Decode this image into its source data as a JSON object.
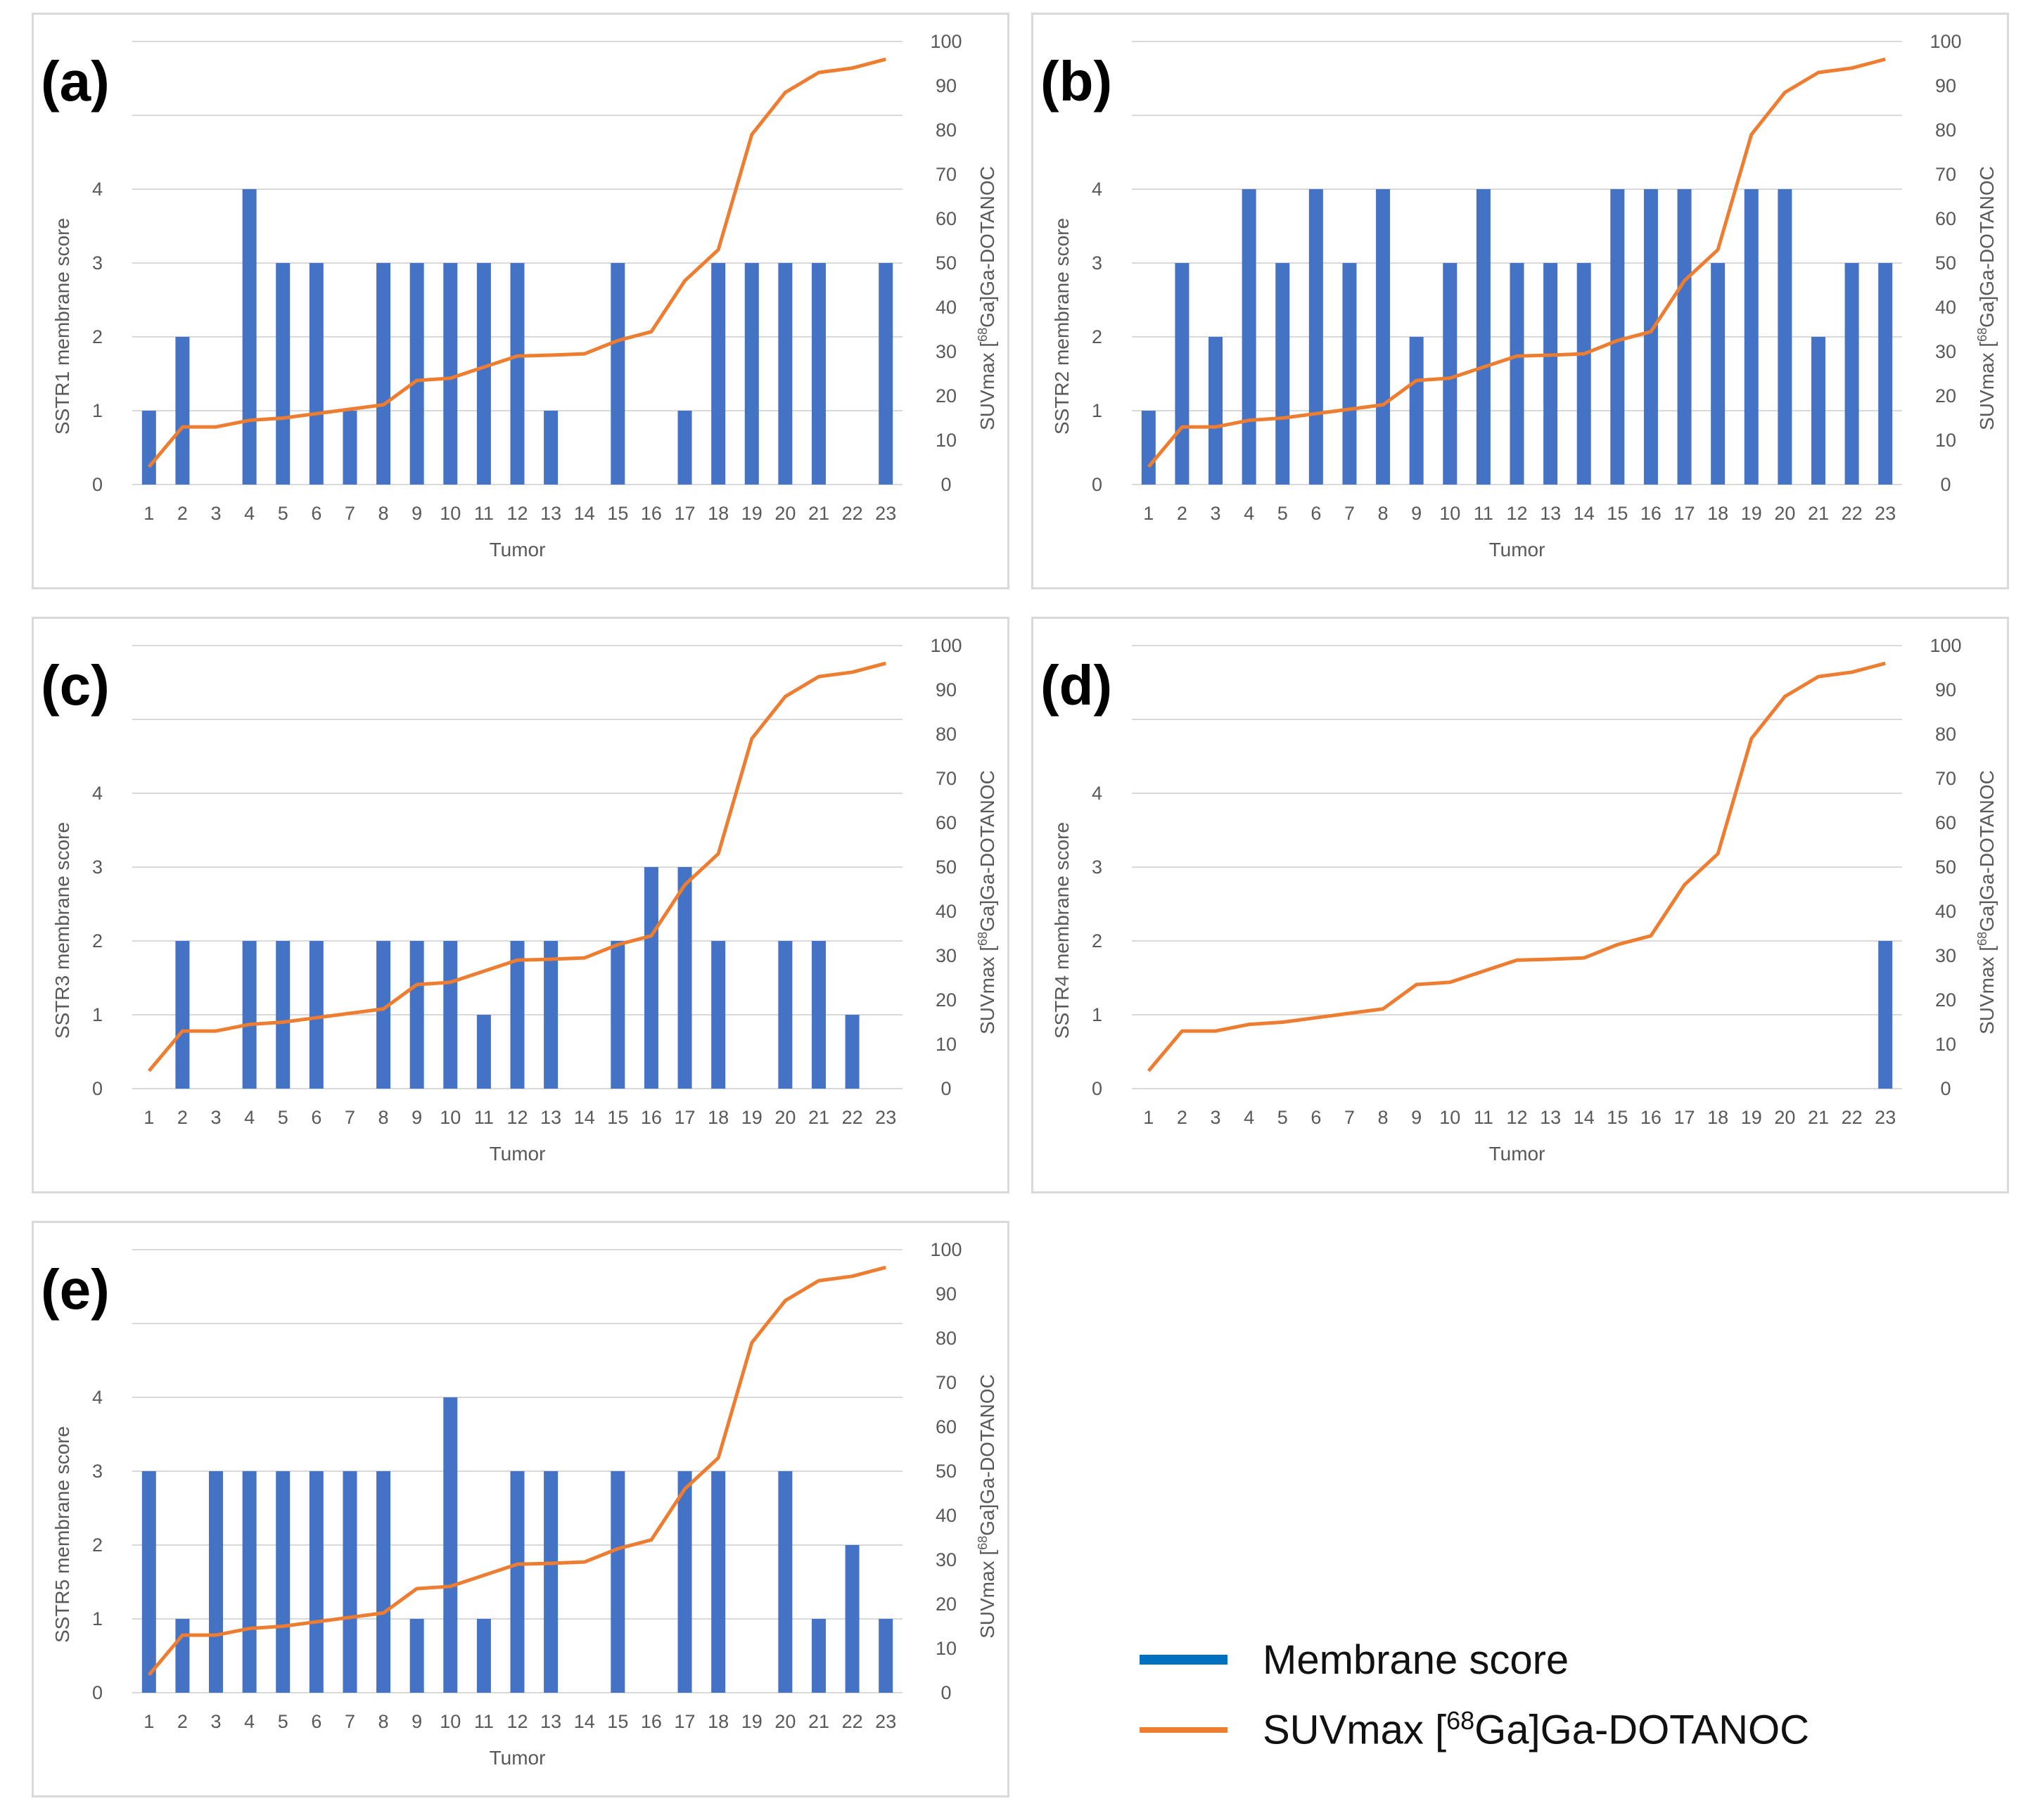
{
  "legend": {
    "membrane_label": "Membrane score",
    "suv_label_prefix": "SUVmax [",
    "suv_label_sup": "68",
    "suv_label_suffix": "Ga]Ga-DOTANOC",
    "membrane_color": "#0070c0",
    "suv_color": "#ed7d31"
  },
  "chart_data": [
    {
      "id": "a",
      "panel_label": "(a)",
      "type": "bar+line",
      "ylabel": "SSTR1 membrane  score",
      "y2label_prefix": "SUVmax [",
      "y2label_sup": "68",
      "y2label_suffix": "Ga]Ga-DOTANOC",
      "xlabel": "Tumor",
      "ylim": [
        0,
        6
      ],
      "y_ticks": [
        0,
        1,
        2,
        3,
        4
      ],
      "y2lim": [
        0,
        100
      ],
      "y2_ticks": [
        0,
        10,
        20,
        30,
        40,
        50,
        60,
        70,
        80,
        90,
        100
      ],
      "categories": [
        "1",
        "2",
        "3",
        "4",
        "5",
        "6",
        "7",
        "8",
        "9",
        "10",
        "11",
        "12",
        "13",
        "14",
        "15",
        "16",
        "17",
        "18",
        "19",
        "20",
        "21",
        "22",
        "23"
      ],
      "series": [
        {
          "name": "Membrane score",
          "kind": "bar",
          "axis": "left",
          "color": "#4472c4",
          "values": [
            1,
            2,
            0,
            4,
            3,
            3,
            1,
            3,
            3,
            3,
            3,
            3,
            1,
            0,
            3,
            0,
            1,
            3,
            3,
            3,
            3,
            0,
            3
          ]
        },
        {
          "name": "SUVmax [68Ga]Ga-DOTANOC",
          "kind": "line",
          "axis": "right",
          "color": "#ed7d31",
          "values": [
            4,
            13,
            13,
            14.5,
            15,
            16,
            17,
            18,
            23.5,
            24,
            26.5,
            29,
            29.2,
            29.5,
            32.5,
            34.5,
            46,
            53,
            79,
            88.5,
            93,
            94,
            96
          ]
        }
      ]
    },
    {
      "id": "b",
      "panel_label": "(b)",
      "type": "bar+line",
      "ylabel": "SSTR2 membrane score",
      "y2label_prefix": "SUVmax [",
      "y2label_sup": "68",
      "y2label_suffix": "Ga]Ga-DOTANOC",
      "xlabel": "Tumor",
      "ylim": [
        0,
        6
      ],
      "y_ticks": [
        0,
        1,
        2,
        3,
        4
      ],
      "y2lim": [
        0,
        100
      ],
      "y2_ticks": [
        0,
        10,
        20,
        30,
        40,
        50,
        60,
        70,
        80,
        90,
        100
      ],
      "categories": [
        "1",
        "2",
        "3",
        "4",
        "5",
        "6",
        "7",
        "8",
        "9",
        "10",
        "11",
        "12",
        "13",
        "14",
        "15",
        "16",
        "17",
        "18",
        "19",
        "20",
        "21",
        "22",
        "23"
      ],
      "series": [
        {
          "name": "Membrane score",
          "kind": "bar",
          "axis": "left",
          "color": "#4472c4",
          "values": [
            1,
            3,
            2,
            4,
            3,
            4,
            3,
            4,
            2,
            3,
            4,
            3,
            3,
            3,
            4,
            4,
            4,
            3,
            4,
            4,
            2,
            3,
            3
          ]
        },
        {
          "name": "SUVmax [68Ga]Ga-DOTANOC",
          "kind": "line",
          "axis": "right",
          "color": "#ed7d31",
          "values": [
            4,
            13,
            13,
            14.5,
            15,
            16,
            17,
            18,
            23.5,
            24,
            26.5,
            29,
            29.2,
            29.5,
            32.5,
            34.5,
            46,
            53,
            79,
            88.5,
            93,
            94,
            96
          ]
        }
      ]
    },
    {
      "id": "c",
      "panel_label": "(c)",
      "type": "bar+line",
      "ylabel": "SSTR3 membrane score",
      "y2label_prefix": "SUVmax [",
      "y2label_sup": "68",
      "y2label_suffix": "Ga]Ga-DOTANOC",
      "xlabel": "Tumor",
      "ylim": [
        0,
        6
      ],
      "y_ticks": [
        0,
        1,
        2,
        3,
        4
      ],
      "y2lim": [
        0,
        100
      ],
      "y2_ticks": [
        0,
        10,
        20,
        30,
        40,
        50,
        60,
        70,
        80,
        90,
        100
      ],
      "categories": [
        "1",
        "2",
        "3",
        "4",
        "5",
        "6",
        "7",
        "8",
        "9",
        "10",
        "11",
        "12",
        "13",
        "14",
        "15",
        "16",
        "17",
        "18",
        "19",
        "20",
        "21",
        "22",
        "23"
      ],
      "series": [
        {
          "name": "Membrane score",
          "kind": "bar",
          "axis": "left",
          "color": "#4472c4",
          "values": [
            0,
            2,
            0,
            2,
            2,
            2,
            0,
            2,
            2,
            2,
            1,
            2,
            2,
            0,
            2,
            3,
            3,
            2,
            0,
            2,
            2,
            1,
            0
          ]
        },
        {
          "name": "SUVmax [68Ga]Ga-DOTANOC",
          "kind": "line",
          "axis": "right",
          "color": "#ed7d31",
          "values": [
            4,
            13,
            13,
            14.5,
            15,
            16,
            17,
            18,
            23.5,
            24,
            26.5,
            29,
            29.2,
            29.5,
            32.5,
            34.5,
            46,
            53,
            79,
            88.5,
            93,
            94,
            96
          ]
        }
      ]
    },
    {
      "id": "d",
      "panel_label": "(d)",
      "type": "bar+line",
      "ylabel": "SSTR4 membrane score",
      "y2label_prefix": "SUVmax [",
      "y2label_sup": "68",
      "y2label_suffix": "Ga]Ga-DOTANOC",
      "xlabel": "Tumor",
      "ylim": [
        0,
        6
      ],
      "y_ticks": [
        0,
        1,
        2,
        3,
        4
      ],
      "y2lim": [
        0,
        100
      ],
      "y2_ticks": [
        0,
        10,
        20,
        30,
        40,
        50,
        60,
        70,
        80,
        90,
        100
      ],
      "categories": [
        "1",
        "2",
        "3",
        "4",
        "5",
        "6",
        "7",
        "8",
        "9",
        "10",
        "11",
        "12",
        "13",
        "14",
        "15",
        "16",
        "17",
        "18",
        "19",
        "20",
        "21",
        "22",
        "23"
      ],
      "series": [
        {
          "name": "Membrane score",
          "kind": "bar",
          "axis": "left",
          "color": "#4472c4",
          "values": [
            0,
            0,
            0,
            0,
            0,
            0,
            0,
            0,
            0,
            0,
            0,
            0,
            0,
            0,
            0,
            0,
            0,
            0,
            0,
            0,
            0,
            0,
            2
          ]
        },
        {
          "name": "SUVmax [68Ga]Ga-DOTANOC",
          "kind": "line",
          "axis": "right",
          "color": "#ed7d31",
          "values": [
            4,
            13,
            13,
            14.5,
            15,
            16,
            17,
            18,
            23.5,
            24,
            26.5,
            29,
            29.2,
            29.5,
            32.5,
            34.5,
            46,
            53,
            79,
            88.5,
            93,
            94,
            96
          ]
        }
      ]
    },
    {
      "id": "e",
      "panel_label": "(e)",
      "type": "bar+line",
      "ylabel": "SSTR5 membrane score",
      "y2label_prefix": "SUVmax [",
      "y2label_sup": "68",
      "y2label_suffix": "Ga]Ga-DOTANOC",
      "xlabel": "Tumor",
      "ylim": [
        0,
        6
      ],
      "y_ticks": [
        0,
        1,
        2,
        3,
        4
      ],
      "y2lim": [
        0,
        100
      ],
      "y2_ticks": [
        0,
        10,
        20,
        30,
        40,
        50,
        60,
        70,
        80,
        90,
        100
      ],
      "categories": [
        "1",
        "2",
        "3",
        "4",
        "5",
        "6",
        "7",
        "8",
        "9",
        "10",
        "11",
        "12",
        "13",
        "14",
        "15",
        "16",
        "17",
        "18",
        "19",
        "20",
        "21",
        "22",
        "23"
      ],
      "series": [
        {
          "name": "Membrane score",
          "kind": "bar",
          "axis": "left",
          "color": "#4472c4",
          "values": [
            3,
            1,
            3,
            3,
            3,
            3,
            3,
            3,
            1,
            4,
            1,
            3,
            3,
            0,
            3,
            0,
            3,
            3,
            0,
            3,
            1,
            2,
            1
          ]
        },
        {
          "name": "SUVmax [68Ga]Ga-DOTANOC",
          "kind": "line",
          "axis": "right",
          "color": "#ed7d31",
          "values": [
            4,
            13,
            13,
            14.5,
            15,
            16,
            17,
            18,
            23.5,
            24,
            26.5,
            29,
            29.2,
            29.5,
            32.5,
            34.5,
            46,
            53,
            79,
            88.5,
            93,
            94,
            96
          ]
        }
      ]
    }
  ]
}
